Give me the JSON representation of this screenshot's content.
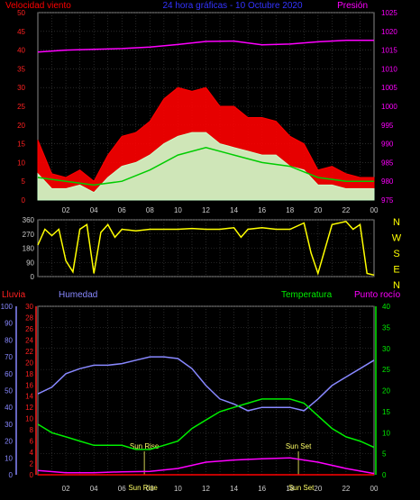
{
  "chart_data": [
    {
      "type": "line",
      "title": "24 hora gráficas - 10 Octubre 2020",
      "left_axis_label": "Velocidad viento",
      "right_axis_label": "Presión",
      "x_ticks": [
        "02",
        "04",
        "06",
        "08",
        "10",
        "12",
        "14",
        "16",
        "18",
        "20",
        "22",
        "00"
      ],
      "y_left_ticks": [
        "0",
        "5",
        "10",
        "15",
        "20",
        "25",
        "30",
        "35",
        "40",
        "45",
        "50"
      ],
      "y_left_range": [
        0,
        50
      ],
      "y_right_ticks": [
        "975",
        "980",
        "985",
        "990",
        "995",
        "1000",
        "1005",
        "1010",
        "1015",
        "1020",
        "1025"
      ],
      "y_right_range": [
        975,
        1025
      ],
      "series": [
        {
          "role": "gust",
          "color": "#ff0000",
          "x": [
            0,
            1,
            2,
            3,
            4,
            5,
            6,
            7,
            8,
            9,
            10,
            11,
            12,
            13,
            14,
            15,
            16,
            17,
            18,
            19,
            20,
            21,
            22,
            23,
            24
          ],
          "values": [
            16,
            7,
            6,
            8,
            5,
            12,
            17,
            18,
            21,
            27,
            30,
            29,
            30,
            25,
            25,
            22,
            22,
            21,
            17,
            15,
            8,
            9,
            7,
            6,
            6
          ]
        },
        {
          "role": "speed",
          "color": "#ccffcc",
          "x": [
            0,
            1,
            2,
            3,
            4,
            5,
            6,
            7,
            8,
            9,
            10,
            11,
            12,
            13,
            14,
            15,
            16,
            17,
            18,
            19,
            20,
            21,
            22,
            23,
            24
          ],
          "values": [
            7,
            3,
            3,
            4,
            2,
            6,
            9,
            10,
            12,
            15,
            17,
            18,
            18,
            15,
            14,
            13,
            12,
            12,
            9,
            8,
            4,
            4,
            3,
            3,
            3
          ]
        },
        {
          "role": "average",
          "color": "#00cc00",
          "x": [
            0,
            2,
            4,
            6,
            8,
            10,
            12,
            14,
            16,
            18,
            20,
            22,
            24
          ],
          "values": [
            6,
            5,
            4,
            5,
            8,
            12,
            14,
            12,
            10,
            9,
            6,
            5,
            5
          ]
        },
        {
          "role": "pressure",
          "color": "#ff00ff",
          "axis": "right",
          "x": [
            0,
            2,
            4,
            6,
            8,
            10,
            12,
            14,
            16,
            18,
            20,
            22,
            24
          ],
          "values": [
            1014.5,
            1015.0,
            1015.2,
            1015.4,
            1015.8,
            1016.5,
            1017.3,
            1017.4,
            1016.4,
            1016.6,
            1017.2,
            1017.6,
            1017.6
          ]
        }
      ]
    },
    {
      "type": "line",
      "y_left_ticks": [
        "360",
        "270",
        "180",
        "90",
        "0"
      ],
      "y_left_range": [
        0,
        360
      ],
      "y_right_ticks": [
        "N",
        "W",
        "S",
        "E",
        "N"
      ],
      "series": [
        {
          "role": "wind-direction",
          "color": "#ffff00",
          "x": [
            0,
            0.5,
            1,
            1.5,
            2,
            2.5,
            3,
            3.5,
            4,
            4.5,
            5,
            5.5,
            6,
            7,
            8,
            9,
            10,
            11,
            12,
            13,
            14,
            14.5,
            15,
            16,
            17,
            18,
            19,
            19.5,
            20,
            21,
            22,
            22.5,
            23,
            23.5,
            24
          ],
          "values": [
            200,
            300,
            260,
            300,
            100,
            30,
            300,
            330,
            20,
            280,
            330,
            250,
            300,
            290,
            300,
            300,
            300,
            305,
            300,
            300,
            310,
            250,
            300,
            310,
            300,
            300,
            340,
            150,
            20,
            330,
            350,
            300,
            330,
            20,
            10
          ]
        }
      ]
    },
    {
      "type": "line",
      "labels": {
        "rain": "Lluvia",
        "humidity": "Humedad",
        "temperature": "Temperatura",
        "dewpoint": "Punto rocío"
      },
      "annotations": [
        "Sun Rise",
        "Sun Set",
        "Sun Rise",
        "Sun Set"
      ],
      "y_left_outer_ticks": [
        "0",
        "10",
        "20",
        "30",
        "40",
        "50",
        "60",
        "70",
        "80",
        "90",
        "100"
      ],
      "y_left_inner_ticks": [
        "0",
        "2",
        "4",
        "6",
        "8",
        "10",
        "12",
        "14",
        "16",
        "18",
        "20",
        "22",
        "24",
        "26",
        "28",
        "30"
      ],
      "y_right_ticks": [
        "0",
        "5",
        "10",
        "15",
        "20",
        "25",
        "30",
        "35",
        "40"
      ],
      "series": [
        {
          "role": "humidity",
          "color": "#8888ff",
          "axis": "outer-left",
          "x": [
            0,
            1,
            2,
            3,
            4,
            5,
            6,
            7,
            8,
            9,
            10,
            11,
            12,
            13,
            14,
            15,
            16,
            17,
            18,
            19,
            20,
            21,
            22,
            23,
            24
          ],
          "values": [
            48,
            52,
            60,
            63,
            65,
            65,
            66,
            68,
            70,
            70,
            69,
            63,
            53,
            45,
            42,
            38,
            40,
            40,
            40,
            38,
            45,
            53,
            58,
            63,
            68
          ]
        },
        {
          "role": "temperature",
          "color": "#00ee00",
          "axis": "right",
          "x": [
            0,
            1,
            2,
            3,
            4,
            5,
            6,
            7,
            8,
            9,
            10,
            11,
            12,
            13,
            14,
            15,
            16,
            17,
            18,
            19,
            20,
            21,
            22,
            23,
            24
          ],
          "values": [
            12,
            10,
            9,
            8,
            7,
            7,
            7,
            6,
            6,
            7,
            8,
            11,
            13,
            15,
            16,
            17,
            18,
            18,
            18,
            17,
            14,
            11,
            9,
            8,
            6.5
          ]
        },
        {
          "role": "dewpoint",
          "color": "#ff00ff",
          "axis": "right",
          "x": [
            0,
            2,
            4,
            6,
            8,
            10,
            12,
            14,
            16,
            18,
            20,
            22,
            24
          ],
          "values": [
            1,
            0.5,
            0.5,
            0.7,
            0.8,
            1.5,
            3.0,
            3.5,
            3.8,
            4.0,
            3.0,
            1.5,
            0.3
          ]
        },
        {
          "role": "rain",
          "color": "#ff0000",
          "axis": "inner-left",
          "x": [
            0,
            24
          ],
          "values": [
            0,
            0
          ]
        }
      ]
    }
  ]
}
